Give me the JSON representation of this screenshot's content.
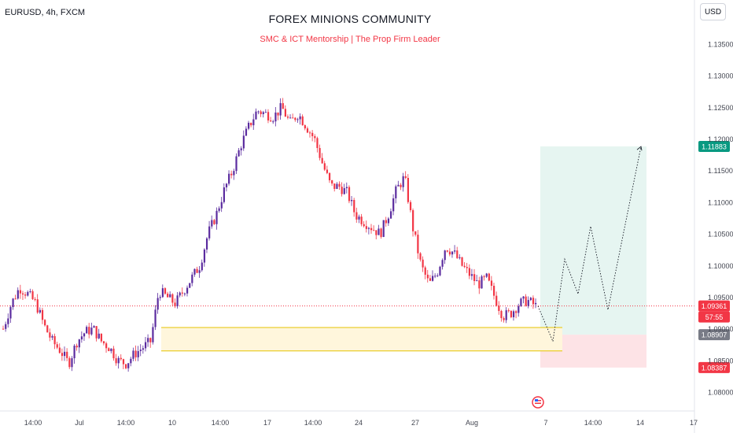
{
  "header": {
    "symbol": "EURUSD, 4h, FXCM",
    "title": "FOREX MINIONS COMMUNITY",
    "subtitle": "SMC & ICT Mentorship | The Prop Firm Leader",
    "currency": "USD"
  },
  "colors": {
    "bull": "#5b2c9f",
    "bear": "#f23645",
    "zone_border": "#e6c300",
    "zone_fill": "#fff6dc",
    "target_fill": "#e6f5f1",
    "stop_fill": "#fde3e6",
    "target_label": "#089981",
    "current_label": "#f23645",
    "neutral_label": "#787b86"
  },
  "price_labels": {
    "target": "1.11883",
    "current": "1.09361",
    "countdown": "57:55",
    "entry": "1.08907",
    "stop": "1.08387"
  },
  "chart_data": {
    "type": "candlestick",
    "symbol": "EURUSD",
    "timeframe": "4h",
    "ylim": [
      1.078,
      1.137
    ],
    "y_ticks": [
      "1.08000",
      "1.08500",
      "1.09000",
      "1.09500",
      "1.10000",
      "1.10500",
      "1.11000",
      "1.11500",
      "1.12000",
      "1.12500",
      "1.13000",
      "1.13500"
    ],
    "x_ticks": [
      "14:00",
      "Jul",
      "14:00",
      "10",
      "14:00",
      "17",
      "14:00",
      "24",
      "27",
      "Aug",
      "7",
      "14:00",
      "14",
      "17"
    ],
    "current_price": 1.09361,
    "demand_zone": [
      1.0865,
      1.0902
    ],
    "long_position": {
      "entry": 1.08907,
      "target": 1.11883,
      "stop": 1.08387
    },
    "projection_path": [
      1.0936,
      1.088,
      1.101,
      1.0955,
      1.1062,
      1.093,
      1.1188
    ],
    "close_path": [
      1.09,
      1.094,
      1.0965,
      1.0955,
      1.094,
      1.0905,
      1.088,
      1.0865,
      1.0845,
      1.088,
      1.0895,
      1.09,
      1.088,
      1.087,
      1.085,
      1.0845,
      1.086,
      1.087,
      1.088,
      1.096,
      1.095,
      1.094,
      1.096,
      1.098,
      1.1,
      1.105,
      1.108,
      1.112,
      1.115,
      1.119,
      1.122,
      1.1245,
      1.124,
      1.1235,
      1.125,
      1.1225,
      1.124,
      1.122,
      1.12,
      1.116,
      1.1125,
      1.1125,
      1.1115,
      1.108,
      1.107,
      1.106,
      1.105,
      1.108,
      1.112,
      1.114,
      1.106,
      1.1,
      1.097,
      1.099,
      1.103,
      1.102,
      1.1,
      1.0985,
      1.097,
      1.098,
      1.095,
      1.092,
      1.0925,
      1.094,
      1.0945,
      1.0936
    ]
  }
}
